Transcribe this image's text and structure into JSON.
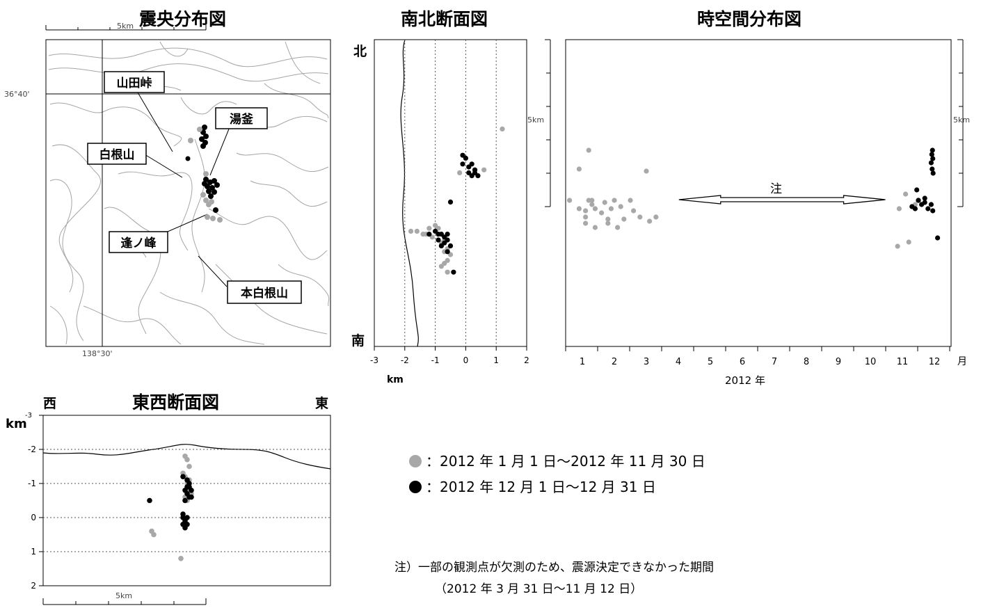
{
  "epicenter_map": {
    "title": "震央分布図",
    "scale_label": "5km",
    "lat_label": "36°40'",
    "lon_label": "138°30'",
    "place_labels": [
      "山田峠",
      "湯釜",
      "白根山",
      "逢ノ峰",
      "本白根山"
    ]
  },
  "colors": {
    "period1": "#a8a8a8",
    "period2": "#000000",
    "topo": "#9a9a9a"
  },
  "legend": {
    "items": [
      {
        "marker": "gray-dot",
        "text": "：2012 年 1 月 1 日～2012 年 11 月 30 日"
      },
      {
        "marker": "black-dot",
        "text": "：2012 年 12 月 1 日～12 月 31 日"
      }
    ]
  },
  "note": {
    "line1": "注）一部の観測点が欠測のため、震源決定できなかった期間",
    "line2": "（2012 年 3 月 31 日～11 月 12 日）"
  },
  "chart_data": [
    {
      "type": "scatter",
      "title": "南北断面図",
      "top_label": "北",
      "bottom_label": "南",
      "xlabel": "km",
      "xlim": [
        -3,
        2
      ],
      "x_ticks": [
        "-3",
        "-2",
        "-1",
        "0",
        "1",
        "2"
      ],
      "scale_label": "5km",
      "series": [
        {
          "marker": "gray",
          "points": [
            [
              -1.8,
              -1.2
            ],
            [
              -1.6,
              -1.2
            ],
            [
              -1.4,
              -1.3
            ],
            [
              -1.3,
              -1.3
            ],
            [
              -1.2,
              -1.1
            ],
            [
              -1.0,
              -1.0
            ],
            [
              -1.1,
              -1.4
            ],
            [
              -0.9,
              -1.5
            ],
            [
              -0.8,
              -1.6
            ],
            [
              -0.7,
              -1.5
            ],
            [
              -0.9,
              -1.1
            ],
            [
              -0.8,
              -1.7
            ],
            [
              -0.7,
              -1.9
            ],
            [
              -0.6,
              -1.8
            ],
            [
              -0.5,
              -2.0
            ],
            [
              -0.6,
              -2.2
            ],
            [
              -0.7,
              -2.3
            ],
            [
              -0.8,
              -2.4
            ],
            [
              -0.6,
              -2.6
            ],
            [
              1.2,
              2.3
            ],
            [
              0.6,
              0.9
            ],
            [
              -0.2,
              0.8
            ]
          ]
        },
        {
          "marker": "black",
          "points": [
            [
              -1.2,
              -1.3
            ],
            [
              -1.0,
              -1.2
            ],
            [
              -0.9,
              -1.3
            ],
            [
              -0.8,
              -1.3
            ],
            [
              -0.7,
              -1.4
            ],
            [
              -0.6,
              -1.3
            ],
            [
              -0.9,
              -1.5
            ],
            [
              -0.7,
              -1.6
            ],
            [
              -0.6,
              -1.5
            ],
            [
              -0.5,
              -1.7
            ],
            [
              -0.8,
              -1.7
            ],
            [
              -0.6,
              -1.9
            ],
            [
              -0.4,
              -2.6
            ],
            [
              -0.5,
              -0.2
            ],
            [
              -0.1,
              1.1
            ],
            [
              0.0,
              1.3
            ],
            [
              0.1,
              1.0
            ],
            [
              0.2,
              1.1
            ],
            [
              0.3,
              0.8
            ],
            [
              0.2,
              0.7
            ],
            [
              0.4,
              0.7
            ],
            [
              0.1,
              0.8
            ],
            [
              -0.1,
              1.4
            ],
            [
              0.3,
              0.9
            ]
          ]
        }
      ]
    },
    {
      "type": "scatter",
      "title": "時空間分布図",
      "xlabel": "2012 年",
      "x_unit": "月",
      "x_ticks": [
        "1",
        "2",
        "3",
        "4",
        "5",
        "6",
        "7",
        "8",
        "9",
        "10",
        "11",
        "12"
      ],
      "scale_label": "5km",
      "annotation": "注",
      "annotation_range": [
        3.8,
        10.6
      ],
      "series": [
        {
          "marker": "gray",
          "points": [
            [
              0.6,
              -1.0
            ],
            [
              0.9,
              0.5
            ],
            [
              0.9,
              -1.4
            ],
            [
              1.1,
              -1.5
            ],
            [
              1.1,
              -1.8
            ],
            [
              1.1,
              -2.1
            ],
            [
              1.2,
              -1.0
            ],
            [
              1.2,
              1.4
            ],
            [
              1.3,
              -1.0
            ],
            [
              1.3,
              -1.2
            ],
            [
              1.4,
              -1.4
            ],
            [
              1.4,
              -2.3
            ],
            [
              1.6,
              -1.6
            ],
            [
              1.7,
              -1.1
            ],
            [
              1.8,
              -1.9
            ],
            [
              1.8,
              -2.1
            ],
            [
              1.9,
              -1.4
            ],
            [
              2.0,
              -1.0
            ],
            [
              2.1,
              -2.3
            ],
            [
              2.2,
              -1.3
            ],
            [
              2.3,
              -1.9
            ],
            [
              2.5,
              -1.0
            ],
            [
              2.6,
              -1.5
            ],
            [
              2.8,
              -1.8
            ],
            [
              3.0,
              0.4
            ],
            [
              3.1,
              -2.0
            ],
            [
              3.3,
              -1.8
            ],
            [
              10.85,
              -3.2
            ],
            [
              10.9,
              -1.4
            ],
            [
              11.1,
              -0.7
            ],
            [
              11.4,
              -1.2
            ],
            [
              11.2,
              -3.0
            ]
          ]
        },
        {
          "marker": "black",
          "points": [
            [
              11.3,
              -1.3
            ],
            [
              11.5,
              -1.0
            ],
            [
              11.6,
              -1.2
            ],
            [
              11.7,
              -1.1
            ],
            [
              11.8,
              -1.4
            ],
            [
              11.9,
              -1.2
            ],
            [
              11.95,
              -1.5
            ],
            [
              11.5,
              -1.0
            ],
            [
              11.4,
              -1.4
            ],
            [
              11.7,
              -0.9
            ],
            [
              11.45,
              -0.5
            ],
            [
              11.9,
              0.8
            ],
            [
              11.92,
              1.2
            ],
            [
              11.93,
              0.5
            ],
            [
              11.94,
              1.4
            ],
            [
              11.95,
              1.0
            ],
            [
              11.96,
              0.3
            ],
            [
              12.1,
              -2.8
            ]
          ]
        }
      ]
    },
    {
      "type": "scatter",
      "title": "東西断面図",
      "left_label": "西",
      "right_label": "東",
      "ylabel": "km",
      "ylim": [
        -3,
        2
      ],
      "y_ticks": [
        "-3",
        "-2",
        "-1",
        "0",
        "1",
        "2"
      ],
      "scale_label": "5km",
      "series": [
        {
          "marker": "gray",
          "points": [
            [
              -1.0,
              -1.8
            ],
            [
              -0.9,
              -1.7
            ],
            [
              -0.8,
              -1.5
            ],
            [
              -1.1,
              -1.3
            ],
            [
              -1.0,
              -1.2
            ],
            [
              -0.9,
              -1.0
            ],
            [
              -0.8,
              -0.8
            ],
            [
              -1.0,
              -0.6
            ],
            [
              -0.9,
              -0.5
            ],
            [
              -2.6,
              0.4
            ],
            [
              -2.5,
              0.5
            ],
            [
              -1.2,
              1.2
            ],
            [
              -0.8,
              -1.1
            ],
            [
              -0.7,
              -0.7
            ]
          ]
        },
        {
          "marker": "black",
          "points": [
            [
              -1.1,
              -1.2
            ],
            [
              -0.9,
              -1.1
            ],
            [
              -0.8,
              -1.0
            ],
            [
              -0.9,
              -0.9
            ],
            [
              -1.0,
              -0.8
            ],
            [
              -0.8,
              -0.9
            ],
            [
              -0.7,
              -0.8
            ],
            [
              -0.9,
              -0.7
            ],
            [
              -0.8,
              -0.6
            ],
            [
              -1.0,
              -0.5
            ],
            [
              -0.7,
              -0.6
            ],
            [
              -2.7,
              -0.5
            ],
            [
              -1.1,
              0.0
            ],
            [
              -0.9,
              0.0
            ],
            [
              -1.0,
              0.1
            ],
            [
              -1.1,
              0.2
            ],
            [
              -0.9,
              0.2
            ],
            [
              -1.0,
              0.3
            ],
            [
              -1.1,
              -0.1
            ]
          ]
        }
      ]
    }
  ]
}
